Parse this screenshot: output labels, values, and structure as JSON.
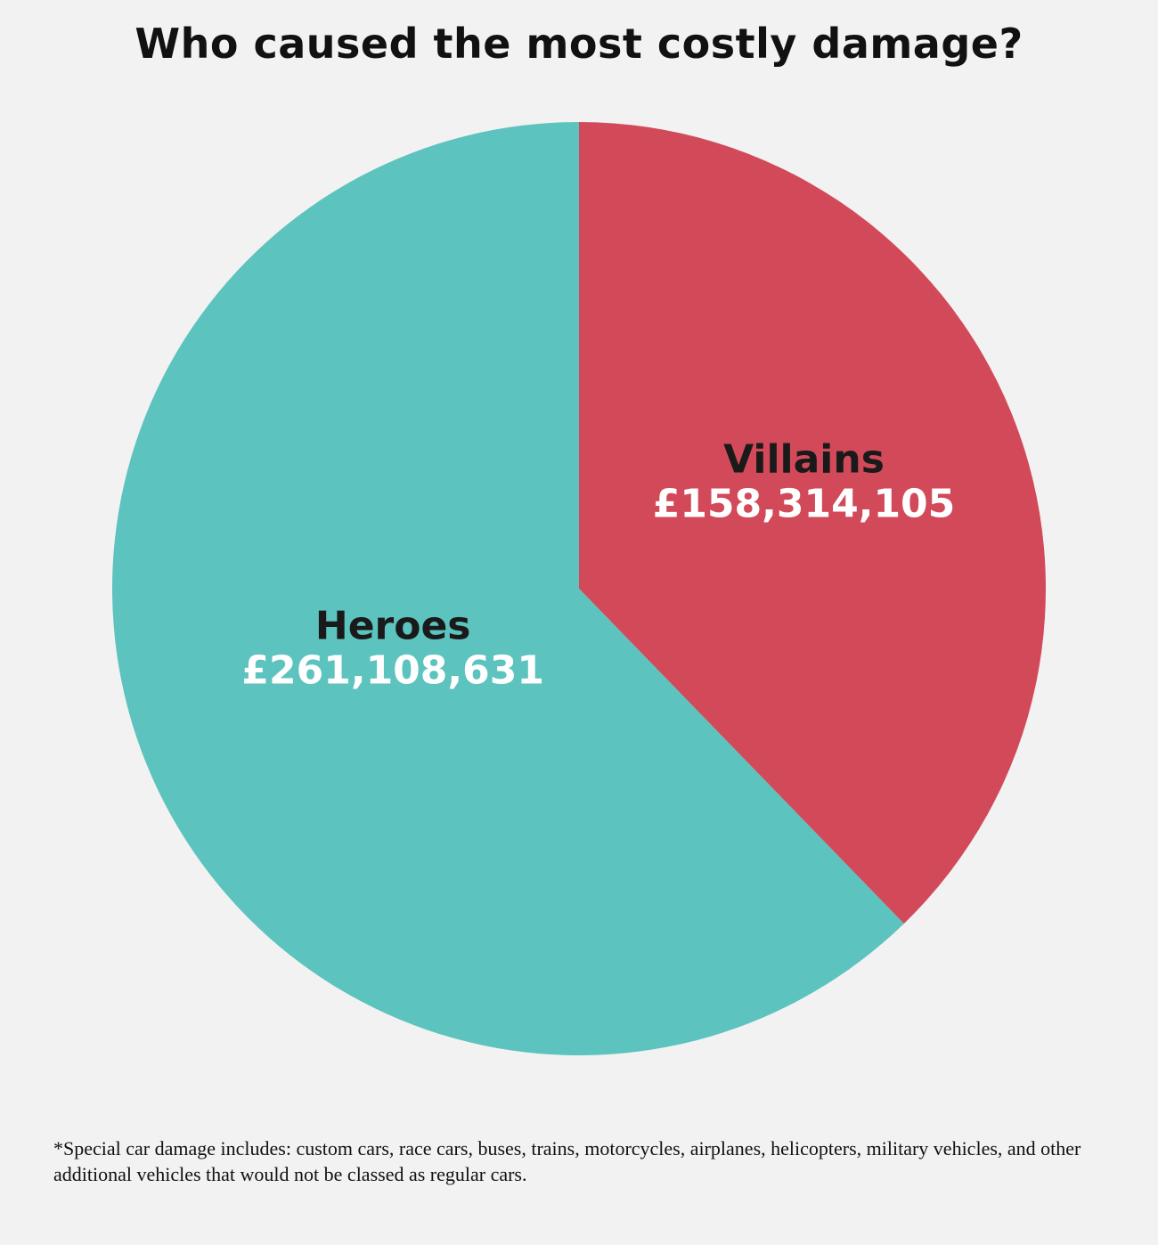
{
  "chart_data": {
    "type": "pie",
    "title": "Who caused the most costly damage?",
    "slices": [
      {
        "name": "Villains",
        "value": 158314105,
        "label": "£158,314,105",
        "color": "#d24a5a",
        "label_color": "#ffffff",
        "name_color": "#1a1a1a"
      },
      {
        "name": "Heroes",
        "value": 261108631,
        "label": "£261,108,631",
        "color": "#5cc3be",
        "label_color": "#ffffff",
        "name_color": "#1a1a1a"
      }
    ],
    "start": "12 o'clock",
    "direction": "clockwise",
    "legend": "none"
  },
  "footnote": "*Special car damage includes: custom cars, race cars, buses, trains, motorcycles, airplanes, helicopters, military vehicles, and other additional vehicles that would not be classed as regular cars.",
  "background_color": "#f2f2f2"
}
